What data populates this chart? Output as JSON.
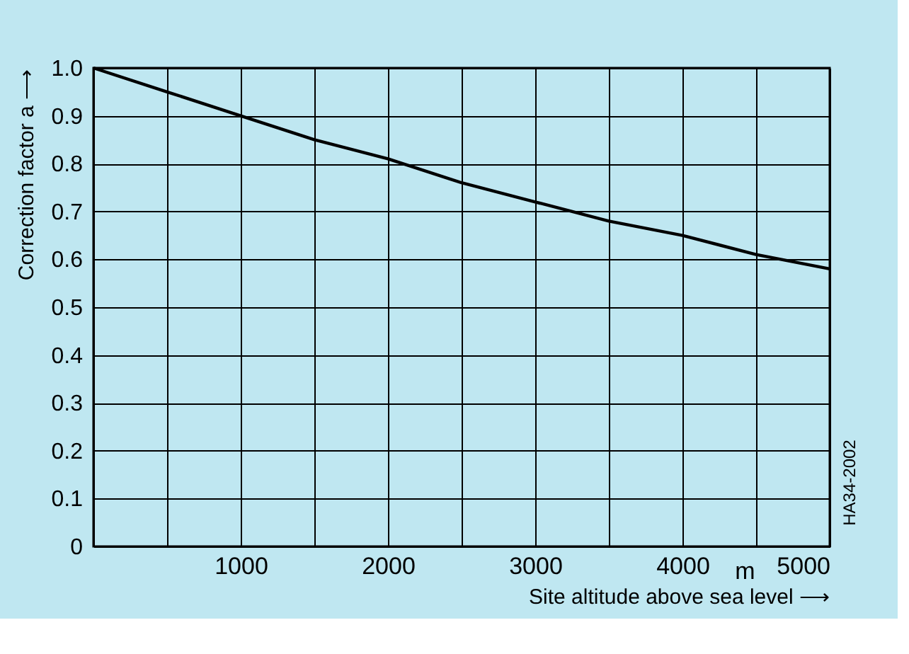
{
  "chart_data": {
    "type": "line",
    "xlabel": "Site altitude above sea level ⟶",
    "ylabel": "Correction factor a ⟶",
    "x": [
      0,
      500,
      1000,
      1500,
      2000,
      2500,
      3000,
      3500,
      4000,
      4500,
      5000
    ],
    "series": [
      {
        "color": "#000000",
        "values": [
          1.0,
          0.95,
          0.9,
          0.85,
          0.81,
          0.76,
          0.72,
          0.68,
          0.65,
          0.61,
          0.58
        ]
      }
    ],
    "xlim": [
      0,
      5000
    ],
    "ylim": [
      0,
      1.0
    ],
    "xticks": [
      {
        "value": 0,
        "label": null
      },
      {
        "value": 500,
        "label": null
      },
      1000,
      {
        "value": 1500,
        "label": null
      },
      2000,
      {
        "value": 2500,
        "label": null
      },
      3000,
      {
        "value": 3500,
        "label": null
      },
      4000,
      {
        "value": 4500,
        "label": null
      },
      5000
    ],
    "yticks": [
      0,
      0.1,
      0.2,
      0.3,
      0.4,
      0.5,
      0.6,
      0.7,
      0.8,
      0.9,
      {
        "value": 1.0,
        "label": "1.0"
      }
    ],
    "grid": true,
    "marker": "none",
    "line_style": "solid",
    "annotations": [
      "m",
      "HA34-2002"
    ]
  }
}
